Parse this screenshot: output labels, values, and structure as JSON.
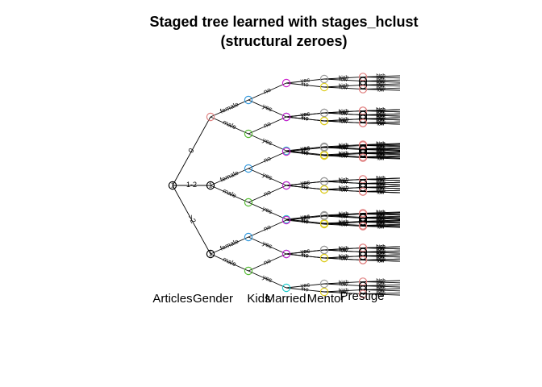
{
  "title_line1": "Staged tree learned with stages_hclust",
  "title_line2": "(structural zeroes)",
  "variables": [
    "Articles",
    "Gender",
    "Kids",
    "Married",
    "Mentor",
    "Prestige"
  ],
  "colors": {
    "black": "#000000",
    "pink": "#e08080",
    "green": "#55bb33",
    "blue": "#3399dd",
    "magenta": "#cc22cc",
    "cyan": "#22cccc",
    "gray": "#999999",
    "yellow": "#ddcc22"
  },
  "tree": {
    "root_label": "1",
    "articles_levels": [
      "0",
      "1-2",
      ">2"
    ],
    "gender_levels": [
      "female",
      "male"
    ],
    "kids_levels": [
      "no",
      "yes"
    ],
    "married_levels": [
      "yes",
      "no"
    ],
    "mentor_levels": [
      "high",
      "low"
    ],
    "prestige_levels": [
      "high",
      "low"
    ],
    "gender_node_label": "1",
    "gender_node_colors": [
      "pink",
      "black",
      "black"
    ],
    "kids_node_colors": [
      "blue",
      "green"
    ],
    "married_node_colors": [
      "magenta",
      "cyan"
    ],
    "mentor_node_colors_by_gender": {
      "female": [
        "gray",
        "yellow"
      ],
      "male": [
        "gray",
        "yellow"
      ]
    },
    "prestige_node_colors": [
      "pink",
      "black"
    ]
  }
}
